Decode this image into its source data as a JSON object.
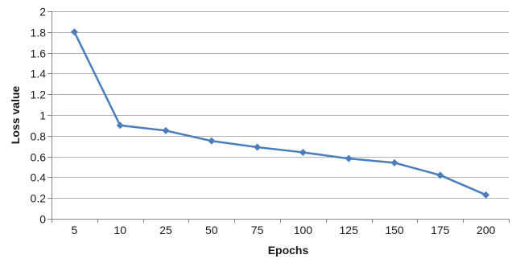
{
  "chart_data": {
    "type": "line",
    "categories": [
      "5",
      "10",
      "25",
      "50",
      "75",
      "100",
      "125",
      "150",
      "175",
      "200"
    ],
    "series": [
      {
        "values": [
          1.8,
          0.9,
          0.85,
          0.75,
          0.69,
          0.64,
          0.58,
          0.54,
          0.42,
          0.23
        ]
      }
    ],
    "xlabel": "Epochs",
    "ylabel": "Loss value",
    "ylim": [
      0,
      2
    ],
    "yticks": [
      "0",
      "0.2",
      "0.4",
      "0.6",
      "0.8",
      "1",
      "1.2",
      "1.4",
      "1.6",
      "1.8",
      "2"
    ],
    "grid": true,
    "legend": "none",
    "colors": {
      "series": "#4a7ebb",
      "grid": "#b3b3b3",
      "axis": "#868686"
    },
    "marker": "diamond"
  }
}
